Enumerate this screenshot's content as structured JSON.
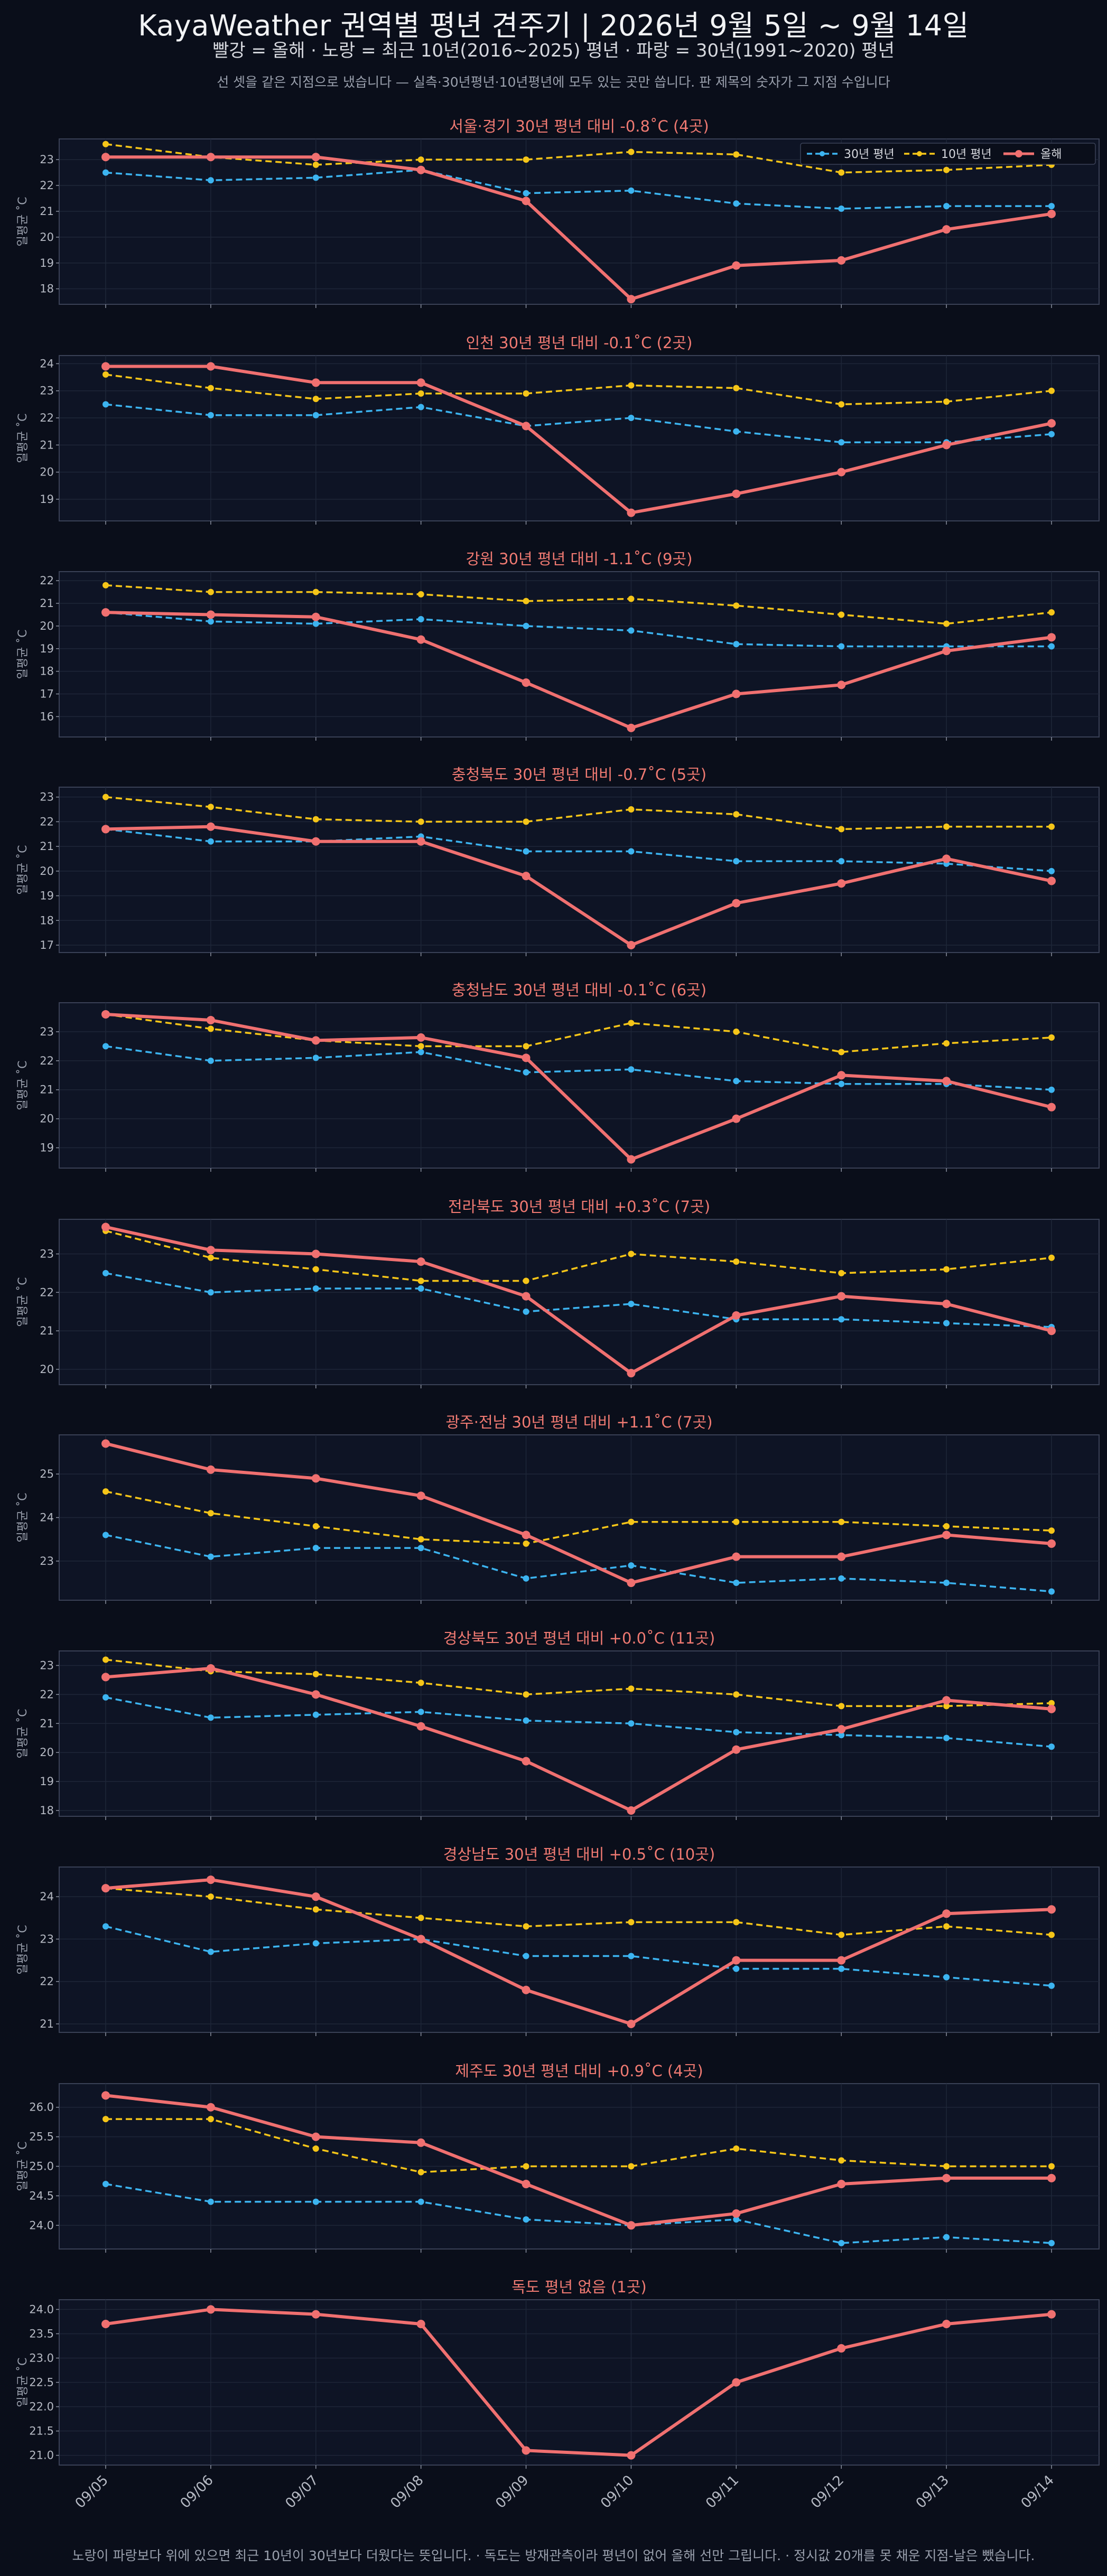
{
  "header": {
    "title": "KayaWeather 권역별 평년 견주기 | 2026년 9월 5일 ~ 9월 14일",
    "subtitle": "빨강 = 올해   ·   노랑 = 최근 10년(2016~2025) 평년   ·   파랑 = 30년(1991~2020) 평년",
    "note": "선 셋을 같은 지점으로 냈습니다 — 실측·30년평년·10년평년에 모두 있는 곳만 씁니다. 판 제목의 숫자가 그 지점 수입니다"
  },
  "footer": "노랑이 파랑보다 위에 있으면 최근 10년이 30년보다 더웠다는 뜻입니다.   ·   독도는 방재관측이라 평년이 없어 올해 선만 그립니다.   ·   정시값 20개를 못 채운 지점-날은 뺐습니다.",
  "colors": {
    "this_year": "#f07070",
    "recent10": "#f5c518",
    "normal30": "#3cb4f0",
    "panel_bg": "#0e1425",
    "frame": "#3a4156",
    "grid": "#1e2638"
  },
  "chart_data": [
    {
      "type": "line",
      "title": "서울·경기   30년 평년 대비 -0.8˚C (4곳)",
      "ylabel": "일평균 ˚C",
      "x": [
        "09/05",
        "09/06",
        "09/07",
        "09/08",
        "09/09",
        "09/10",
        "09/11",
        "09/12",
        "09/13",
        "09/14"
      ],
      "yticks": [
        18,
        19,
        20,
        21,
        22,
        23
      ],
      "ylim": [
        17.4,
        23.8
      ],
      "legend": "top-right",
      "series": [
        {
          "name": "30년 평년",
          "style": "dashed",
          "values": [
            22.5,
            22.2,
            22.3,
            22.6,
            21.7,
            21.8,
            21.3,
            21.1,
            21.2,
            21.2
          ]
        },
        {
          "name": "10년 평년",
          "style": "dashed",
          "values": [
            23.6,
            23.1,
            22.8,
            23.0,
            23.0,
            23.3,
            23.2,
            22.5,
            22.6,
            22.8
          ]
        },
        {
          "name": "올해",
          "style": "solid",
          "values": [
            23.1,
            23.1,
            23.1,
            22.6,
            21.4,
            17.6,
            18.9,
            19.1,
            20.3,
            20.9
          ]
        }
      ]
    },
    {
      "type": "line",
      "title": "인천   30년 평년 대비 -0.1˚C (2곳)",
      "ylabel": "일평균 ˚C",
      "x": [
        "09/05",
        "09/06",
        "09/07",
        "09/08",
        "09/09",
        "09/10",
        "09/11",
        "09/12",
        "09/13",
        "09/14"
      ],
      "yticks": [
        19,
        20,
        21,
        22,
        23,
        24
      ],
      "ylim": [
        18.2,
        24.3
      ],
      "series": [
        {
          "name": "30년 평년",
          "style": "dashed",
          "values": [
            22.5,
            22.1,
            22.1,
            22.4,
            21.7,
            22.0,
            21.5,
            21.1,
            21.1,
            21.4
          ]
        },
        {
          "name": "10년 평년",
          "style": "dashed",
          "values": [
            23.6,
            23.1,
            22.7,
            22.9,
            22.9,
            23.2,
            23.1,
            22.5,
            22.6,
            23.0
          ]
        },
        {
          "name": "올해",
          "style": "solid",
          "values": [
            23.9,
            23.9,
            23.3,
            23.3,
            21.7,
            18.5,
            19.2,
            20.0,
            21.0,
            21.8
          ]
        }
      ]
    },
    {
      "type": "line",
      "title": "강원   30년 평년 대비 -1.1˚C (9곳)",
      "ylabel": "일평균 ˚C",
      "x": [
        "09/05",
        "09/06",
        "09/07",
        "09/08",
        "09/09",
        "09/10",
        "09/11",
        "09/12",
        "09/13",
        "09/14"
      ],
      "yticks": [
        16,
        17,
        18,
        19,
        20,
        21,
        22
      ],
      "ylim": [
        15.1,
        22.4
      ],
      "series": [
        {
          "name": "30년 평년",
          "style": "dashed",
          "values": [
            20.6,
            20.2,
            20.1,
            20.3,
            20.0,
            19.8,
            19.2,
            19.1,
            19.1,
            19.1
          ]
        },
        {
          "name": "10년 평년",
          "style": "dashed",
          "values": [
            21.8,
            21.5,
            21.5,
            21.4,
            21.1,
            21.2,
            20.9,
            20.5,
            20.1,
            20.6
          ]
        },
        {
          "name": "올해",
          "style": "solid",
          "values": [
            20.6,
            20.5,
            20.4,
            19.4,
            17.5,
            15.5,
            17.0,
            17.4,
            18.9,
            19.5
          ]
        }
      ]
    },
    {
      "type": "line",
      "title": "충청북도   30년 평년 대비 -0.7˚C (5곳)",
      "ylabel": "일평균 ˚C",
      "x": [
        "09/05",
        "09/06",
        "09/07",
        "09/08",
        "09/09",
        "09/10",
        "09/11",
        "09/12",
        "09/13",
        "09/14"
      ],
      "yticks": [
        17,
        18,
        19,
        20,
        21,
        22,
        23
      ],
      "ylim": [
        16.7,
        23.4
      ],
      "series": [
        {
          "name": "30년 평년",
          "style": "dashed",
          "values": [
            21.7,
            21.2,
            21.2,
            21.4,
            20.8,
            20.8,
            20.4,
            20.4,
            20.3,
            20.0
          ]
        },
        {
          "name": "10년 평년",
          "style": "dashed",
          "values": [
            23.0,
            22.6,
            22.1,
            22.0,
            22.0,
            22.5,
            22.3,
            21.7,
            21.8,
            21.8
          ]
        },
        {
          "name": "올해",
          "style": "solid",
          "values": [
            21.7,
            21.8,
            21.2,
            21.2,
            19.8,
            17.0,
            18.7,
            19.5,
            20.5,
            19.6
          ]
        }
      ]
    },
    {
      "type": "line",
      "title": "충청남도   30년 평년 대비 -0.1˚C (6곳)",
      "ylabel": "일평균 ˚C",
      "x": [
        "09/05",
        "09/06",
        "09/07",
        "09/08",
        "09/09",
        "09/10",
        "09/11",
        "09/12",
        "09/13",
        "09/14"
      ],
      "yticks": [
        19,
        20,
        21,
        22,
        23
      ],
      "ylim": [
        18.3,
        24.0
      ],
      "series": [
        {
          "name": "30년 평년",
          "style": "dashed",
          "values": [
            22.5,
            22.0,
            22.1,
            22.3,
            21.6,
            21.7,
            21.3,
            21.2,
            21.2,
            21.0
          ]
        },
        {
          "name": "10년 평년",
          "style": "dashed",
          "values": [
            23.6,
            23.1,
            22.7,
            22.5,
            22.5,
            23.3,
            23.0,
            22.3,
            22.6,
            22.8
          ]
        },
        {
          "name": "올해",
          "style": "solid",
          "values": [
            23.6,
            23.4,
            22.7,
            22.8,
            22.1,
            18.6,
            20.0,
            21.5,
            21.3,
            20.4
          ]
        }
      ]
    },
    {
      "type": "line",
      "title": "전라북도   30년 평년 대비 +0.3˚C (7곳)",
      "ylabel": "일평균 ˚C",
      "x": [
        "09/05",
        "09/06",
        "09/07",
        "09/08",
        "09/09",
        "09/10",
        "09/11",
        "09/12",
        "09/13",
        "09/14"
      ],
      "yticks": [
        20,
        21,
        22,
        23
      ],
      "ylim": [
        19.6,
        23.9
      ],
      "series": [
        {
          "name": "30년 평년",
          "style": "dashed",
          "values": [
            22.5,
            22.0,
            22.1,
            22.1,
            21.5,
            21.7,
            21.3,
            21.3,
            21.2,
            21.1
          ]
        },
        {
          "name": "10년 평년",
          "style": "dashed",
          "values": [
            23.6,
            22.9,
            22.6,
            22.3,
            22.3,
            23.0,
            22.8,
            22.5,
            22.6,
            22.9
          ]
        },
        {
          "name": "올해",
          "style": "solid",
          "values": [
            23.7,
            23.1,
            23.0,
            22.8,
            21.9,
            19.9,
            21.4,
            21.9,
            21.7,
            21.0
          ]
        }
      ]
    },
    {
      "type": "line",
      "title": "광주·전남   30년 평년 대비 +1.1˚C (7곳)",
      "ylabel": "일평균 ˚C",
      "x": [
        "09/05",
        "09/06",
        "09/07",
        "09/08",
        "09/09",
        "09/10",
        "09/11",
        "09/12",
        "09/13",
        "09/14"
      ],
      "yticks": [
        23,
        24,
        25
      ],
      "ylim": [
        22.1,
        25.9
      ],
      "series": [
        {
          "name": "30년 평년",
          "style": "dashed",
          "values": [
            23.6,
            23.1,
            23.3,
            23.3,
            22.6,
            22.9,
            22.5,
            22.6,
            22.5,
            22.3
          ]
        },
        {
          "name": "10년 평년",
          "style": "dashed",
          "values": [
            24.6,
            24.1,
            23.8,
            23.5,
            23.4,
            23.9,
            23.9,
            23.9,
            23.8,
            23.7
          ]
        },
        {
          "name": "올해",
          "style": "solid",
          "values": [
            25.7,
            25.1,
            24.9,
            24.5,
            23.6,
            22.5,
            23.1,
            23.1,
            23.6,
            23.4
          ]
        }
      ]
    },
    {
      "type": "line",
      "title": "경상북도   30년 평년 대비 +0.0˚C (11곳)",
      "ylabel": "일평균 ˚C",
      "x": [
        "09/05",
        "09/06",
        "09/07",
        "09/08",
        "09/09",
        "09/10",
        "09/11",
        "09/12",
        "09/13",
        "09/14"
      ],
      "yticks": [
        18,
        19,
        20,
        21,
        22,
        23
      ],
      "ylim": [
        17.8,
        23.5
      ],
      "series": [
        {
          "name": "30년 평년",
          "style": "dashed",
          "values": [
            21.9,
            21.2,
            21.3,
            21.4,
            21.1,
            21.0,
            20.7,
            20.6,
            20.5,
            20.2
          ]
        },
        {
          "name": "10년 평년",
          "style": "dashed",
          "values": [
            23.2,
            22.8,
            22.7,
            22.4,
            22.0,
            22.2,
            22.0,
            21.6,
            21.6,
            21.7
          ]
        },
        {
          "name": "올해",
          "style": "solid",
          "values": [
            22.6,
            22.9,
            22.0,
            20.9,
            19.7,
            18.0,
            20.1,
            20.8,
            21.8,
            21.5
          ]
        }
      ]
    },
    {
      "type": "line",
      "title": "경상남도   30년 평년 대비 +0.5˚C (10곳)",
      "ylabel": "일평균 ˚C",
      "x": [
        "09/05",
        "09/06",
        "09/07",
        "09/08",
        "09/09",
        "09/10",
        "09/11",
        "09/12",
        "09/13",
        "09/14"
      ],
      "yticks": [
        21,
        22,
        23,
        24
      ],
      "ylim": [
        20.8,
        24.7
      ],
      "series": [
        {
          "name": "30년 평년",
          "style": "dashed",
          "values": [
            23.3,
            22.7,
            22.9,
            23.0,
            22.6,
            22.6,
            22.3,
            22.3,
            22.1,
            21.9
          ]
        },
        {
          "name": "10년 평년",
          "style": "dashed",
          "values": [
            24.2,
            24.0,
            23.7,
            23.5,
            23.3,
            23.4,
            23.4,
            23.1,
            23.3,
            23.1
          ]
        },
        {
          "name": "올해",
          "style": "solid",
          "values": [
            24.2,
            24.4,
            24.0,
            23.0,
            21.8,
            21.0,
            22.5,
            22.5,
            23.6,
            23.7
          ]
        }
      ]
    },
    {
      "type": "line",
      "title": "제주도   30년 평년 대비 +0.9˚C (4곳)",
      "ylabel": "일평균 ˚C",
      "x": [
        "09/05",
        "09/06",
        "09/07",
        "09/08",
        "09/09",
        "09/10",
        "09/11",
        "09/12",
        "09/13",
        "09/14"
      ],
      "yticks": [
        24.0,
        24.5,
        25.0,
        25.5,
        26.0
      ],
      "ylim": [
        23.6,
        26.4
      ],
      "series": [
        {
          "name": "30년 평년",
          "style": "dashed",
          "values": [
            24.7,
            24.4,
            24.4,
            24.4,
            24.1,
            24.0,
            24.1,
            23.7,
            23.8,
            23.7
          ]
        },
        {
          "name": "10년 평년",
          "style": "dashed",
          "values": [
            25.8,
            25.8,
            25.3,
            24.9,
            25.0,
            25.0,
            25.3,
            25.1,
            25.0,
            25.0
          ]
        },
        {
          "name": "올해",
          "style": "solid",
          "values": [
            26.2,
            26.0,
            25.5,
            25.4,
            24.7,
            24.0,
            24.2,
            24.7,
            24.8,
            24.8
          ]
        }
      ]
    },
    {
      "type": "line",
      "title": "독도   평년 없음 (1곳)",
      "ylabel": "일평균 ˚C",
      "x": [
        "09/05",
        "09/06",
        "09/07",
        "09/08",
        "09/09",
        "09/10",
        "09/11",
        "09/12",
        "09/13",
        "09/14"
      ],
      "yticks": [
        21.0,
        21.5,
        22.0,
        22.5,
        23.0,
        23.5,
        24.0
      ],
      "ylim": [
        20.8,
        24.2
      ],
      "series": [
        {
          "name": "올해",
          "style": "solid",
          "values": [
            23.7,
            24.0,
            23.9,
            23.7,
            21.1,
            21.0,
            22.5,
            23.2,
            23.7,
            23.9
          ]
        }
      ]
    }
  ]
}
